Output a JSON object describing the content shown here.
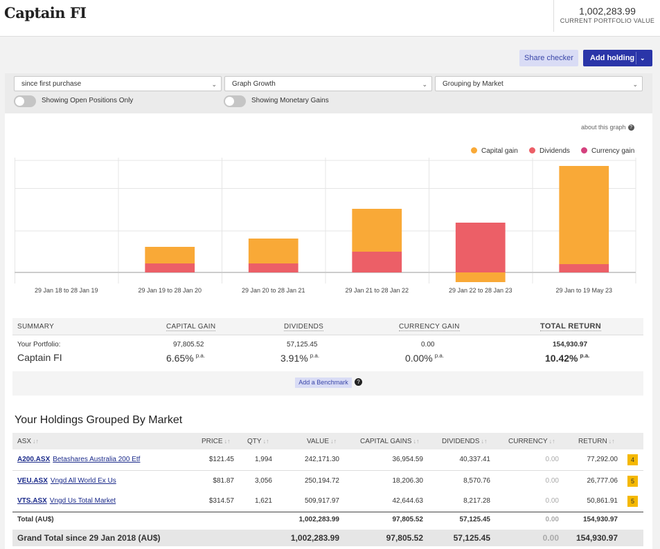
{
  "header": {
    "brand": "Captain FI",
    "portfolio_value": "1,002,283.99",
    "portfolio_value_label": "CURRENT PORTFOLIO VALUE"
  },
  "actions": {
    "share_checker": "Share checker",
    "add_holding": "Add holding"
  },
  "filters": {
    "period": "since first purchase",
    "graph_type": "Graph Growth",
    "grouping": "Grouping by Market",
    "open_positions_label": "Showing Open Positions Only",
    "monetary_gains_label": "Showing Monetary Gains"
  },
  "chart_link": "about this graph",
  "colors": {
    "capital_gain": "#f9a937",
    "dividends": "#ec5f67",
    "currency_gain": "#d4417e"
  },
  "chart_data": {
    "type": "bar",
    "stacked": true,
    "categories": [
      "29 Jan 18 to 28 Jan 19",
      "29 Jan 19 to 28 Jan 20",
      "29 Jan 20 to 28 Jan 21",
      "29 Jan 21 to 28 Jan 22",
      "29 Jan 22 to 28 Jan 23",
      "29 Jan to 19 May 23"
    ],
    "series": [
      {
        "name": "Capital gain",
        "values": [
          0,
          24000,
          36000,
          62000,
          -14000,
          142000
        ]
      },
      {
        "name": "Dividends",
        "values": [
          0,
          13000,
          13000,
          30000,
          72000,
          12000
        ]
      },
      {
        "name": "Currency gain",
        "values": [
          0,
          0,
          0,
          0,
          0,
          0
        ]
      }
    ],
    "ylim": [
      -16000,
      162000
    ],
    "grid": true,
    "legend": "top-right"
  },
  "summary": {
    "headers": {
      "summary": "SUMMARY",
      "capital_gain": "CAPITAL GAIN",
      "dividends": "DIVIDENDS",
      "currency_gain": "CURRENCY GAIN",
      "total_return": "TOTAL RETURN"
    },
    "your_portfolio": "Your Portfolio:",
    "portfolio_name": "Captain FI",
    "capital_gain": "97,805.52",
    "dividends": "57,125.45",
    "currency_gain": "0.00",
    "total_return": "154,930.97",
    "capital_gain_pct": "6.65%",
    "dividends_pct": "3.91%",
    "currency_gain_pct": "0.00%",
    "total_return_pct": "10.42%",
    "pa": "p.a.",
    "benchmark": "Add a Benchmark"
  },
  "holdings": {
    "title": "Your Holdings Grouped By Market",
    "columns": {
      "market": "ASX",
      "price": "PRICE",
      "qty": "QTY",
      "value": "VALUE",
      "capital_gains": "CAPITAL GAINS",
      "dividends": "DIVIDENDS",
      "currency": "CURRENCY",
      "return": "RETURN"
    },
    "rows": [
      {
        "code": "A200.ASX",
        "name": "Betashares Australia 200 Etf",
        "price": "$121.45",
        "qty": "1,994",
        "value": "242,171.30",
        "capital_gains": "36,954.59",
        "dividends": "40,337.41",
        "currency": "0.00",
        "return": "77,292.00",
        "badge": "4"
      },
      {
        "code": "VEU.ASX",
        "name": "Vngd All World Ex Us",
        "price": "$81.87",
        "qty": "3,056",
        "value": "250,194.72",
        "capital_gains": "18,206.30",
        "dividends": "8,570.76",
        "currency": "0.00",
        "return": "26,777.06",
        "badge": "5"
      },
      {
        "code": "VTS.ASX",
        "name": "Vngd Us Total Market",
        "price": "$314.57",
        "qty": "1,621",
        "value": "509,917.97",
        "capital_gains": "42,644.63",
        "dividends": "8,217.28",
        "currency": "0.00",
        "return": "50,861.91",
        "badge": "5"
      }
    ],
    "total": {
      "label": "Total (AU$)",
      "value": "1,002,283.99",
      "capital_gains": "97,805.52",
      "dividends": "57,125.45",
      "currency": "0.00",
      "return": "154,930.97"
    },
    "grand_total": {
      "label": "Grand Total since 29 Jan 2018 (AU$)",
      "value": "1,002,283.99",
      "capital_gains": "97,805.52",
      "dividends": "57,125.45",
      "currency": "0.00",
      "return": "154,930.97"
    }
  }
}
